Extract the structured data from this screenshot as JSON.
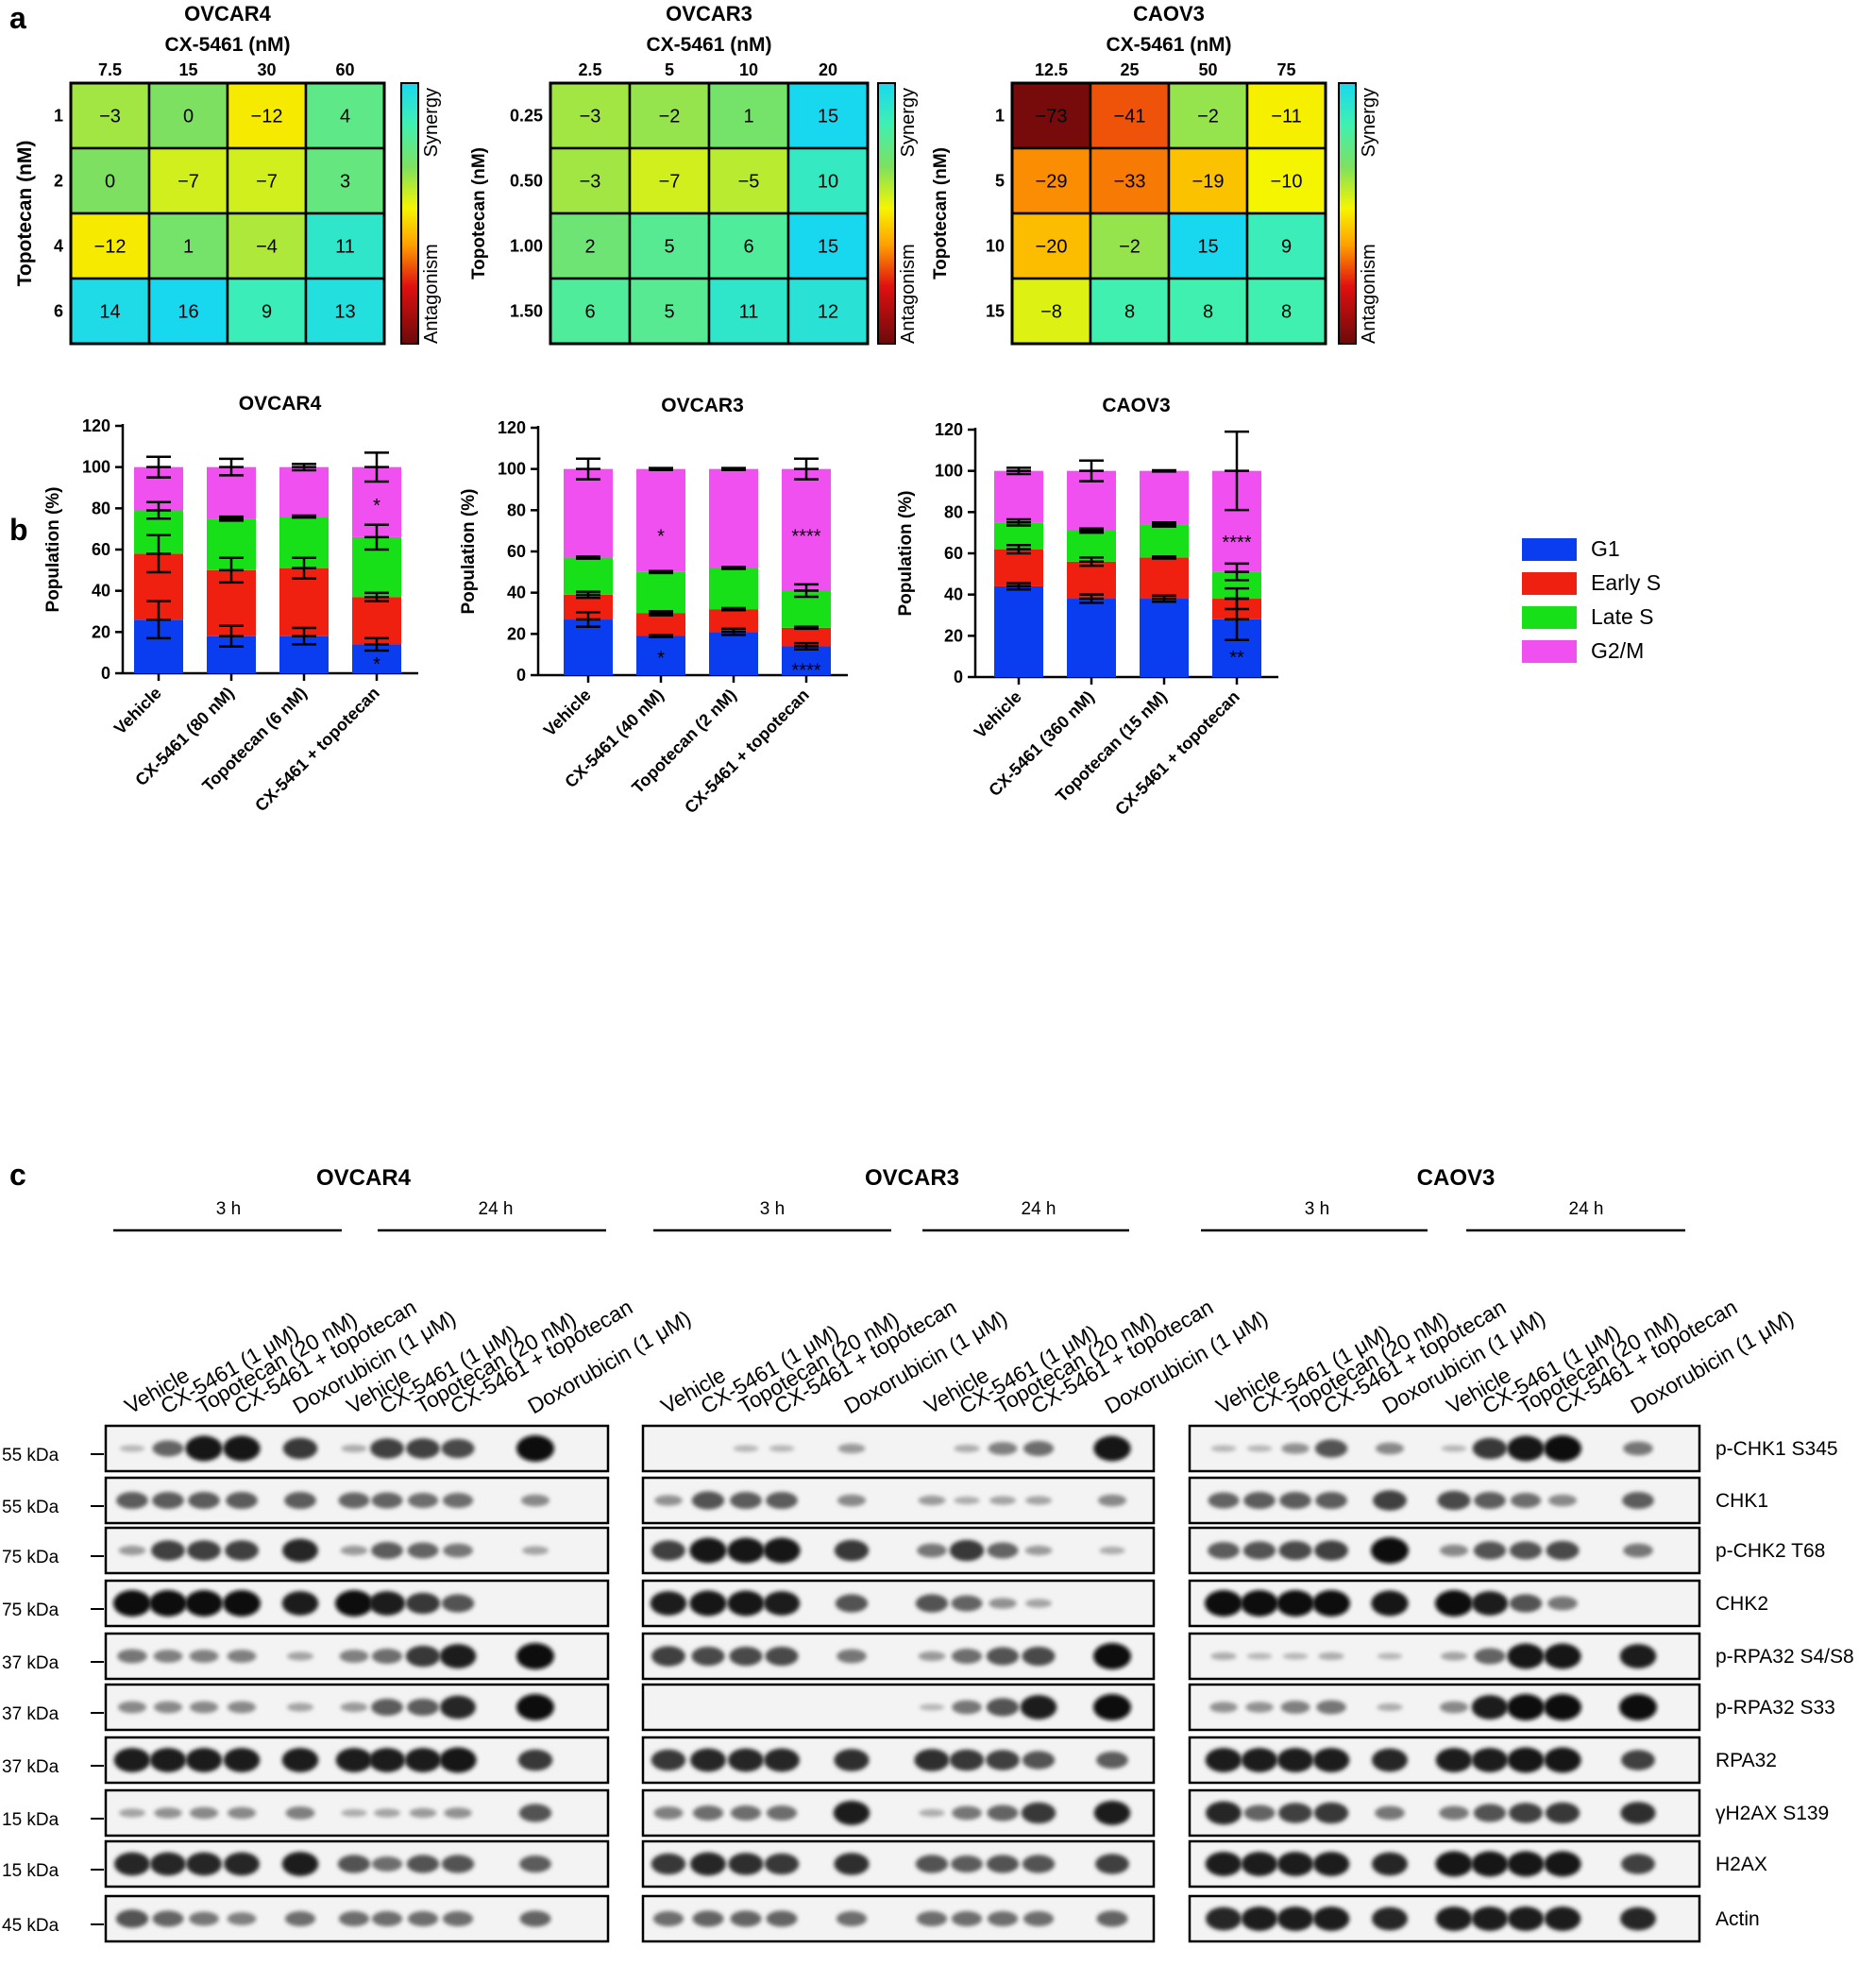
{
  "colors": {
    "g1": "#0a3cf0",
    "early_s": "#f02010",
    "late_s": "#18e018",
    "g2m": "#f050f0",
    "heat_stops": [
      "#6b0a0a",
      "#e01010",
      "#ffa000",
      "#f5f500",
      "#7de060",
      "#40f0b0",
      "#18d8f0"
    ],
    "blot_bg": "#f3f3f3"
  },
  "panels": {
    "a": "a",
    "b": "b",
    "c": "c"
  },
  "heatmap_common": {
    "synergy_label": "Synergy",
    "antagonism_label": "Antagonism",
    "col_title": "CX-5461 (nM)",
    "row_title": "Topotecan (nM)",
    "scale_min": -75,
    "scale_max": 15
  },
  "cellcycle_common": {
    "ylabel": "Population (%)",
    "yticks": [
      "0",
      "20",
      "40",
      "60",
      "80",
      "100",
      "120"
    ],
    "ylim": [
      0,
      120
    ],
    "legend": [
      {
        "key": "g1",
        "label": "G1"
      },
      {
        "key": "early_s",
        "label": "Early S"
      },
      {
        "key": "late_s",
        "label": "Late S"
      },
      {
        "key": "g2m",
        "label": "G2/M"
      }
    ]
  },
  "chart_data": [
    {
      "type": "heatmap",
      "title": "OVCAR4",
      "xlabel": "CX-5461 (nM)",
      "ylabel": "Topotecan (nM)",
      "columns": [
        "7.5",
        "15",
        "30",
        "60"
      ],
      "rows": [
        "1",
        "2",
        "4",
        "6"
      ],
      "values": [
        [
          "−3",
          "0",
          "−12",
          "4"
        ],
        [
          "0",
          "−7",
          "−7",
          "3"
        ],
        [
          "−12",
          "1",
          "−4",
          "11"
        ],
        [
          "14",
          "16",
          "9",
          "13"
        ]
      ]
    },
    {
      "type": "heatmap",
      "title": "OVCAR3",
      "xlabel": "CX-5461 (nM)",
      "ylabel": "Topotecan (nM)",
      "columns": [
        "2.5",
        "5",
        "10",
        "20"
      ],
      "rows": [
        "0.25",
        "0.50",
        "1.00",
        "1.50"
      ],
      "values": [
        [
          "−3",
          "−2",
          "1",
          "15"
        ],
        [
          "−3",
          "−7",
          "−5",
          "10"
        ],
        [
          "2",
          "5",
          "6",
          "15"
        ],
        [
          "6",
          "5",
          "11",
          "12"
        ]
      ]
    },
    {
      "type": "heatmap",
      "title": "CAOV3",
      "xlabel": "CX-5461 (nM)",
      "ylabel": "Topotecan (nM)",
      "columns": [
        "12.5",
        "25",
        "50",
        "75"
      ],
      "rows": [
        "1",
        "5",
        "10",
        "15"
      ],
      "values": [
        [
          "−73",
          "−41",
          "−2",
          "−11"
        ],
        [
          "−29",
          "−33",
          "−19",
          "−10"
        ],
        [
          "−20",
          "−2",
          "15",
          "9"
        ],
        [
          "−8",
          "8",
          "8",
          "8"
        ]
      ]
    },
    {
      "type": "bar",
      "stacked": true,
      "title": "OVCAR4",
      "ylabel": "Population (%)",
      "ylim": [
        0,
        120
      ],
      "categories": [
        "Vehicle",
        "CX-5461 (80 nM)",
        "Topotecan (6 nM)",
        "CX-5461 + topotecan"
      ],
      "series": [
        {
          "name": "G1",
          "key": "g1",
          "values": [
            26,
            18,
            18,
            14
          ],
          "errors": [
            9,
            5,
            4,
            3
          ]
        },
        {
          "name": "Early S",
          "key": "early_s",
          "values": [
            32,
            32,
            33,
            23
          ],
          "errors": [
            9,
            6,
            5,
            2
          ]
        },
        {
          "name": "Late S",
          "key": "late_s",
          "values": [
            21,
            25,
            25,
            29
          ],
          "errors": [
            4,
            1,
            0.5,
            6
          ]
        },
        {
          "name": "G2/M",
          "key": "g2m",
          "values": [
            21,
            25,
            24,
            34
          ],
          "errors": [
            5,
            4,
            1.5,
            7
          ]
        }
      ],
      "annotations": [
        {
          "category": 3,
          "y": 5,
          "text": "*"
        },
        {
          "category": 3,
          "y": 82,
          "text": "*"
        }
      ]
    },
    {
      "type": "bar",
      "stacked": true,
      "title": "OVCAR3",
      "ylabel": "Population (%)",
      "ylim": [
        0,
        120
      ],
      "categories": [
        "Vehicle",
        "CX-5461 (40 nM)",
        "Topotecan (2 nM)",
        "CX-5461 + topotecan"
      ],
      "series": [
        {
          "name": "G1",
          "key": "g1",
          "values": [
            27,
            19,
            21,
            14
          ],
          "errors": [
            3.5,
            0.5,
            1.5,
            1.5
          ]
        },
        {
          "name": "Early S",
          "key": "early_s",
          "values": [
            12,
            11,
            11,
            9
          ],
          "errors": [
            1.5,
            1,
            0.5,
            0.5
          ]
        },
        {
          "name": "Late S",
          "key": "late_s",
          "values": [
            18,
            20,
            20,
            18
          ],
          "errors": [
            0.5,
            0.5,
            0.5,
            3
          ]
        },
        {
          "name": "G2/M",
          "key": "g2m",
          "values": [
            43,
            50,
            48,
            59
          ],
          "errors": [
            5,
            0.5,
            0.5,
            5
          ]
        }
      ],
      "annotations": [
        {
          "category": 1,
          "y": 9,
          "text": "*"
        },
        {
          "category": 3,
          "y": 3,
          "text": "****"
        },
        {
          "category": 1,
          "y": 68,
          "text": "*"
        },
        {
          "category": 3,
          "y": 68,
          "text": "****"
        }
      ]
    },
    {
      "type": "bar",
      "stacked": true,
      "title": "CAOV3",
      "ylabel": "Population (%)",
      "ylim": [
        0,
        120
      ],
      "categories": [
        "Vehicle",
        "CX-5461 (360 nM)",
        "Topotecan (15 nM)",
        "CX-5461 + topotecan"
      ],
      "series": [
        {
          "name": "G1",
          "key": "g1",
          "values": [
            44,
            38,
            38,
            28
          ],
          "errors": [
            1.5,
            2,
            1.5,
            10
          ]
        },
        {
          "name": "Early S",
          "key": "early_s",
          "values": [
            18,
            18,
            20,
            10
          ],
          "errors": [
            2,
            2,
            0.5,
            5
          ]
        },
        {
          "name": "Late S",
          "key": "late_s",
          "values": [
            13,
            15,
            16,
            13
          ],
          "errors": [
            1.5,
            1,
            1,
            4
          ]
        },
        {
          "name": "G2/M",
          "key": "g2m",
          "values": [
            25,
            29,
            26,
            49
          ],
          "errors": [
            1.5,
            5,
            0.3,
            19
          ]
        }
      ],
      "annotations": [
        {
          "category": 3,
          "y": 10,
          "text": "**"
        },
        {
          "category": 3,
          "y": 66,
          "text": "****"
        }
      ]
    }
  ],
  "western": {
    "cell_lines": [
      "OVCAR4",
      "OVCAR3",
      "CAOV3"
    ],
    "timepoints": [
      "3 h",
      "24 h"
    ],
    "lanes": [
      "Vehicle",
      "CX-5461 (1 μM)",
      "Topotecan (20 nM)",
      "CX-5461 + topotecan",
      "Doxorubicin (1 μM)"
    ],
    "rows": [
      {
        "label": "p-CHK1 S345",
        "kda": "55 kDa",
        "intensity": [
          [
            0.05,
            0.5,
            0.95,
            0.95,
            0,
            0.75,
            0.1,
            0.7,
            0.7,
            0.65,
            0,
            1
          ],
          [
            0,
            0,
            0.05,
            0.05,
            0,
            0.2,
            0,
            0.1,
            0.35,
            0.45,
            0,
            0.95
          ],
          [
            0.05,
            0.05,
            0.25,
            0.6,
            0,
            0.3,
            0.05,
            0.75,
            0.95,
            1,
            0,
            0.4
          ]
        ]
      },
      {
        "label": "CHK1",
        "kda": "55 kDa",
        "intensity": [
          [
            0.55,
            0.55,
            0.55,
            0.55,
            0,
            0.55,
            0.5,
            0.5,
            0.45,
            0.45,
            0,
            0.3
          ],
          [
            0.25,
            0.6,
            0.55,
            0.55,
            0,
            0.3,
            0.2,
            0.1,
            0.15,
            0.15,
            0,
            0.3
          ],
          [
            0.5,
            0.55,
            0.55,
            0.55,
            0,
            0.7,
            0.65,
            0.55,
            0.45,
            0.3,
            0,
            0.55
          ]
        ]
      },
      {
        "label": "p-CHK2 T68",
        "kda": "75 kDa",
        "intensity": [
          [
            0.2,
            0.7,
            0.7,
            0.7,
            0,
            0.85,
            0.2,
            0.55,
            0.5,
            0.4,
            0,
            0.15
          ],
          [
            0.7,
            0.95,
            0.95,
            0.95,
            0,
            0.75,
            0.4,
            0.75,
            0.5,
            0.2,
            0,
            0.1
          ],
          [
            0.55,
            0.6,
            0.65,
            0.7,
            0,
            1,
            0.3,
            0.6,
            0.6,
            0.65,
            0,
            0.4
          ]
        ]
      },
      {
        "label": "CHK2",
        "kda": "75 kDa",
        "intensity": [
          [
            1,
            1,
            1,
            1,
            0,
            0.9,
            1,
            0.9,
            0.75,
            0.6,
            0,
            0
          ],
          [
            0.9,
            0.95,
            0.95,
            0.9,
            0,
            0.6,
            0.6,
            0.5,
            0.25,
            0.15,
            0,
            0
          ],
          [
            1,
            1,
            1,
            1,
            0,
            0.95,
            1,
            0.9,
            0.6,
            0.4,
            0,
            0
          ]
        ]
      },
      {
        "label": "p-RPA32 S4/S8",
        "kda": "37 kDa",
        "intensity": [
          [
            0.4,
            0.35,
            0.35,
            0.35,
            0,
            0.15,
            0.35,
            0.45,
            0.75,
            0.9,
            0,
            1
          ],
          [
            0.7,
            0.65,
            0.65,
            0.65,
            0,
            0.4,
            0.2,
            0.45,
            0.6,
            0.65,
            0,
            1
          ],
          [
            0.1,
            0.05,
            0.05,
            0.1,
            0,
            0.05,
            0.15,
            0.5,
            0.95,
            0.95,
            0,
            0.9
          ]
        ]
      },
      {
        "label": "p-RPA32 S33",
        "kda": "37 kDa",
        "intensity": [
          [
            0.3,
            0.3,
            0.3,
            0.3,
            0,
            0.15,
            0.2,
            0.55,
            0.55,
            0.85,
            0,
            1
          ],
          [
            0,
            0,
            0,
            0,
            0,
            0,
            0.05,
            0.4,
            0.6,
            0.9,
            0,
            1
          ],
          [
            0.25,
            0.25,
            0.35,
            0.4,
            0,
            0.1,
            0.3,
            0.9,
            1,
            1,
            0,
            1
          ]
        ]
      },
      {
        "label": "RPA32",
        "kda": "37 kDa",
        "intensity": [
          [
            0.9,
            0.9,
            0.9,
            0.9,
            0,
            0.9,
            0.9,
            0.9,
            0.9,
            0.95,
            0,
            0.75
          ],
          [
            0.75,
            0.85,
            0.85,
            0.85,
            0,
            0.8,
            0.8,
            0.75,
            0.7,
            0.6,
            0,
            0.55
          ],
          [
            0.9,
            0.9,
            0.9,
            0.9,
            0,
            0.85,
            0.9,
            0.9,
            0.95,
            0.95,
            0,
            0.7
          ]
        ]
      },
      {
        "label": "γH2AX S139",
        "kda": "15 kDa",
        "intensity": [
          [
            0.15,
            0.25,
            0.3,
            0.3,
            0,
            0.35,
            0.1,
            0.15,
            0.2,
            0.25,
            0,
            0.6
          ],
          [
            0.35,
            0.45,
            0.45,
            0.45,
            0,
            0.9,
            0.1,
            0.4,
            0.5,
            0.75,
            0,
            0.9
          ],
          [
            0.85,
            0.5,
            0.7,
            0.75,
            0,
            0.4,
            0.4,
            0.6,
            0.7,
            0.75,
            0,
            0.8
          ]
        ]
      },
      {
        "label": "H2AX",
        "kda": "15 kDa",
        "intensity": [
          [
            0.85,
            0.85,
            0.85,
            0.85,
            0,
            0.9,
            0.6,
            0.45,
            0.6,
            0.6,
            0,
            0.55
          ],
          [
            0.75,
            0.85,
            0.8,
            0.75,
            0,
            0.8,
            0.6,
            0.55,
            0.6,
            0.6,
            0,
            0.7
          ],
          [
            0.9,
            0.9,
            0.9,
            0.9,
            0,
            0.85,
            0.95,
            0.95,
            0.95,
            0.95,
            0,
            0.7
          ]
        ]
      },
      {
        "label": "Actin",
        "kda": "45 kDa",
        "intensity": [
          [
            0.6,
            0.5,
            0.4,
            0.35,
            0,
            0.45,
            0.45,
            0.45,
            0.45,
            0.45,
            0,
            0.5
          ],
          [
            0.45,
            0.5,
            0.5,
            0.5,
            0,
            0.45,
            0.45,
            0.45,
            0.45,
            0.45,
            0,
            0.5
          ],
          [
            0.85,
            0.9,
            0.9,
            0.9,
            0,
            0.85,
            0.9,
            0.9,
            0.9,
            0.9,
            0,
            0.85
          ]
        ]
      }
    ]
  }
}
